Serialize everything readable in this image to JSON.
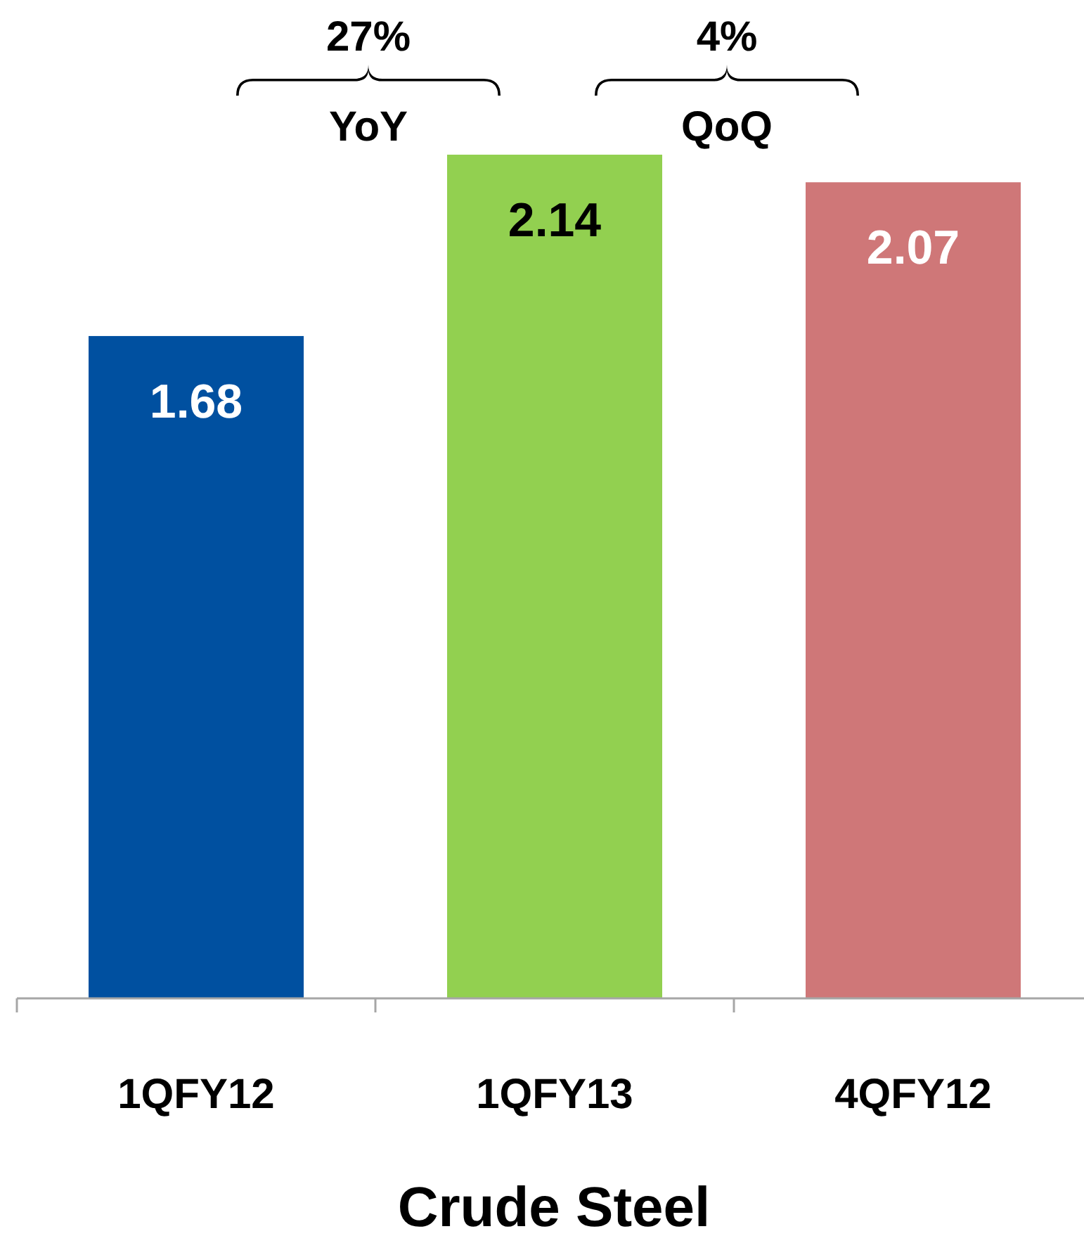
{
  "chart_data": {
    "type": "bar",
    "categories": [
      "1QFY12",
      "1QFY13",
      "4QFY12"
    ],
    "values": [
      1.68,
      2.14,
      2.07
    ],
    "colors": [
      "#0050a0",
      "#92d050",
      "#cf7778"
    ],
    "tick_labels": "x",
    "data_labels": true,
    "xlabel": "Crude Steel",
    "annotations": [
      "27%",
      "YoY",
      "4%",
      "QoQ"
    ]
  }
}
